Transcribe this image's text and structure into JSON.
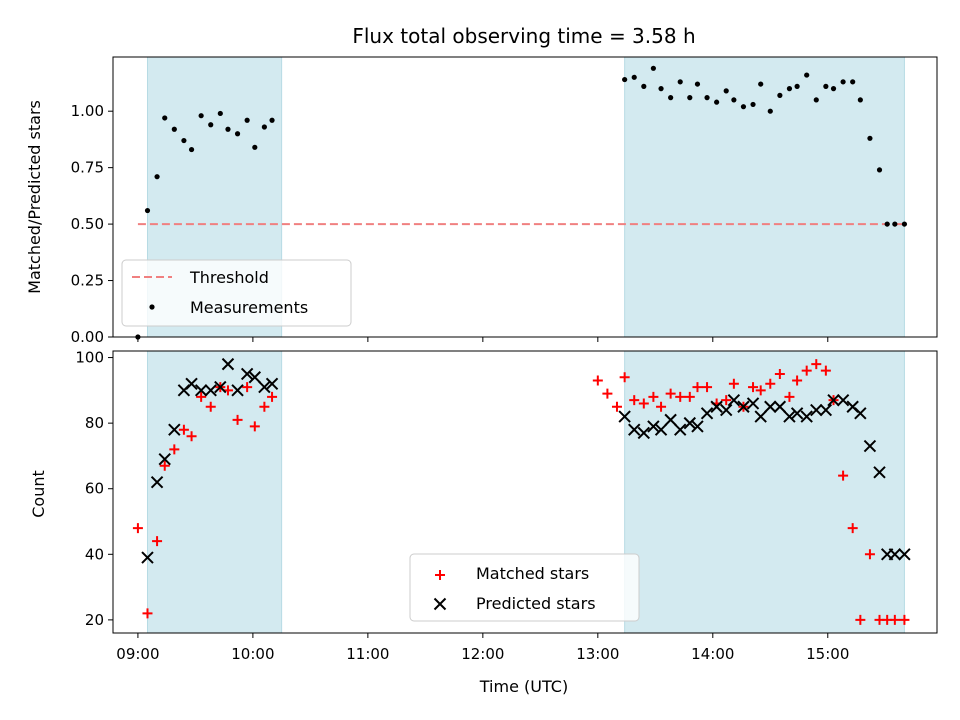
{
  "chart_data": [
    {
      "type": "scatter",
      "title": "Flux total observing time = 3.58 h",
      "xlabel": "",
      "ylabel": "Matched/Predicted stars",
      "xlim": [
        "08:47",
        "15:57"
      ],
      "ylim": [
        0,
        1.24
      ],
      "yticks": [
        "0.00",
        "0.25",
        "0.50",
        "0.75",
        "1.00"
      ],
      "ytick_values": [
        0,
        0.25,
        0.5,
        0.75,
        1.0
      ],
      "xticks": [
        "09:00",
        "10:00",
        "11:00",
        "12:00",
        "13:00",
        "14:00",
        "15:00"
      ],
      "grid": false,
      "legend_placement": "lower-left",
      "shaded_spans": [
        [
          "09:05",
          "10:15"
        ],
        [
          "13:14",
          "15:40"
        ]
      ],
      "shade_color": "#d3eaf0",
      "threshold": {
        "name": "Threshold",
        "value": 0.5,
        "x_start": "09:00",
        "x_end": "15:40",
        "color": "#f08080"
      },
      "series": [
        {
          "name": "Measurements",
          "color": "#000000",
          "x": [
            "09:00",
            "09:05",
            "09:10",
            "09:14",
            "09:19",
            "09:24",
            "09:28",
            "09:33",
            "09:38",
            "09:43",
            "09:47",
            "09:52",
            "09:57",
            "10:01",
            "10:06",
            "10:10",
            "13:14",
            "13:19",
            "13:24",
            "13:29",
            "13:33",
            "13:38",
            "13:43",
            "13:48",
            "13:52",
            "13:57",
            "14:02",
            "14:07",
            "14:11",
            "14:16",
            "14:21",
            "14:25",
            "14:30",
            "14:35",
            "14:40",
            "14:44",
            "14:49",
            "14:54",
            "14:59",
            "15:03",
            "15:08",
            "15:13",
            "15:17",
            "15:22",
            "15:27",
            "15:31",
            "15:35",
            "15:40"
          ],
          "y": [
            0.0,
            0.56,
            0.71,
            0.97,
            0.92,
            0.87,
            0.83,
            0.98,
            0.94,
            0.99,
            0.92,
            0.9,
            0.96,
            0.84,
            0.93,
            0.96,
            1.14,
            1.15,
            1.11,
            1.19,
            1.1,
            1.06,
            1.13,
            1.06,
            1.12,
            1.06,
            1.04,
            1.09,
            1.05,
            1.02,
            1.03,
            1.12,
            1.0,
            1.07,
            1.1,
            1.11,
            1.16,
            1.05,
            1.11,
            1.1,
            1.13,
            1.13,
            1.05,
            0.88,
            0.74,
            0.5,
            0.5,
            0.5
          ]
        }
      ]
    },
    {
      "type": "scatter",
      "title": "",
      "xlabel": "Time (UTC)",
      "ylabel": "Count",
      "xlim": [
        "08:47",
        "15:57"
      ],
      "ylim": [
        16,
        102
      ],
      "yticks": [
        "20",
        "40",
        "60",
        "80",
        "100"
      ],
      "ytick_values": [
        20,
        40,
        60,
        80,
        100
      ],
      "xticks": [
        "09:00",
        "10:00",
        "11:00",
        "12:00",
        "13:00",
        "14:00",
        "15:00"
      ],
      "grid": false,
      "legend_placement": "lower-center",
      "shaded_spans": [
        [
          "09:05",
          "10:15"
        ],
        [
          "13:14",
          "15:40"
        ]
      ],
      "shade_color": "#d3eaf0",
      "series": [
        {
          "name": "Matched stars",
          "color": "#ff0000",
          "marker": "plus",
          "x": [
            "09:00",
            "09:05",
            "09:10",
            "09:14",
            "09:19",
            "09:24",
            "09:28",
            "09:33",
            "09:38",
            "09:43",
            "09:47",
            "09:52",
            "09:57",
            "10:01",
            "10:06",
            "10:10",
            "13:00",
            "13:05",
            "13:10",
            "13:14",
            "13:19",
            "13:24",
            "13:29",
            "13:33",
            "13:38",
            "13:43",
            "13:48",
            "13:52",
            "13:57",
            "14:02",
            "14:07",
            "14:11",
            "14:16",
            "14:21",
            "14:25",
            "14:30",
            "14:35",
            "14:40",
            "14:44",
            "14:49",
            "14:54",
            "14:59",
            "15:03",
            "15:08",
            "15:13",
            "15:17",
            "15:22",
            "15:27",
            "15:31",
            "15:35",
            "15:40"
          ],
          "y": [
            48,
            22,
            44,
            67,
            72,
            78,
            76,
            88,
            85,
            91,
            90,
            81,
            91,
            79,
            85,
            88,
            93,
            89,
            85,
            94,
            87,
            86,
            88,
            85,
            89,
            88,
            88,
            91,
            91,
            86,
            87,
            92,
            85,
            91,
            90,
            92,
            95,
            88,
            93,
            96,
            98,
            96,
            87,
            64,
            48,
            20,
            40,
            20,
            20,
            20,
            20
          ]
        },
        {
          "name": "Predicted stars",
          "color": "#000000",
          "marker": "x",
          "x": [
            "09:05",
            "09:10",
            "09:14",
            "09:19",
            "09:24",
            "09:28",
            "09:33",
            "09:38",
            "09:43",
            "09:47",
            "09:52",
            "09:57",
            "10:01",
            "10:06",
            "10:10",
            "13:14",
            "13:19",
            "13:24",
            "13:29",
            "13:33",
            "13:38",
            "13:43",
            "13:48",
            "13:52",
            "13:57",
            "14:02",
            "14:07",
            "14:11",
            "14:16",
            "14:21",
            "14:25",
            "14:30",
            "14:35",
            "14:40",
            "14:44",
            "14:49",
            "14:54",
            "14:59",
            "15:03",
            "15:08",
            "15:13",
            "15:17",
            "15:22",
            "15:27",
            "15:31",
            "15:35",
            "15:40"
          ],
          "y": [
            39,
            62,
            69,
            78,
            90,
            92,
            90,
            90,
            91,
            98,
            90,
            95,
            94,
            91,
            92,
            82,
            78,
            77,
            79,
            78,
            81,
            78,
            80,
            79,
            83,
            85,
            84,
            87,
            85,
            86,
            82,
            85,
            85,
            82,
            83,
            82,
            84,
            84,
            87,
            87,
            85,
            83,
            73,
            65,
            40,
            40,
            40
          ]
        }
      ]
    }
  ]
}
